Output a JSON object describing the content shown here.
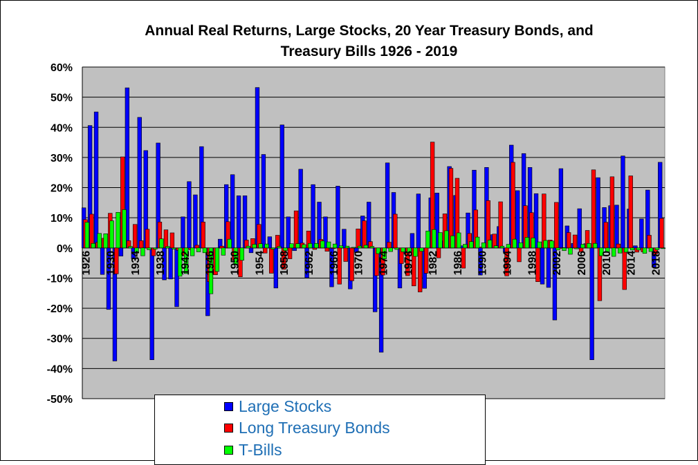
{
  "chart_data": {
    "type": "bar",
    "title": "Annual Real Returns, Large Stocks, 20 Year Treasury Bonds, and Treasury Bills 1926 - 2019",
    "title_lines": [
      "Annual Real Returns, Large Stocks, 20 Year Treasury Bonds, and",
      "Treasury Bills 1926 - 2019"
    ],
    "xlabel": "",
    "ylabel": "",
    "ylim": [
      -50,
      60
    ],
    "y_ticks": [
      "60%",
      "50%",
      "40%",
      "30%",
      "20%",
      "10%",
      "0%",
      "-10%",
      "-20%",
      "-30%",
      "-40%",
      "-50%"
    ],
    "x_tick_labels": [
      "1926",
      "1930",
      "1934",
      "1938",
      "1942",
      "1946",
      "1950",
      "1954",
      "1958",
      "1962",
      "1966",
      "1970",
      "1974",
      "1978",
      "1982",
      "1986",
      "1990",
      "1994",
      "1998",
      "2002",
      "2006",
      "2010",
      "2014",
      "2018"
    ],
    "grid": true,
    "plot_background": "#c0c0c0",
    "legend_position": "bottom",
    "years": [
      1926,
      1927,
      1928,
      1929,
      1930,
      1931,
      1932,
      1933,
      1934,
      1935,
      1936,
      1937,
      1938,
      1939,
      1940,
      1941,
      1942,
      1943,
      1944,
      1945,
      1946,
      1947,
      1948,
      1949,
      1950,
      1951,
      1952,
      1953,
      1954,
      1955,
      1956,
      1957,
      1958,
      1959,
      1960,
      1961,
      1962,
      1963,
      1964,
      1965,
      1966,
      1967,
      1968,
      1969,
      1970,
      1971,
      1972,
      1973,
      1974,
      1975,
      1976,
      1977,
      1978,
      1979,
      1980,
      1981,
      1982,
      1983,
      1984,
      1985,
      1986,
      1987,
      1988,
      1989,
      1990,
      1991,
      1992,
      1993,
      1994,
      1995,
      1996,
      1997,
      1998,
      1999,
      2000,
      2001,
      2002,
      2003,
      2004,
      2005,
      2006,
      2007,
      2008,
      2009,
      2010,
      2011,
      2012,
      2013,
      2014,
      2015,
      2016,
      2017,
      2018,
      2019
    ],
    "series": [
      {
        "name": "Large Stocks",
        "color": "#0000ff",
        "values": [
          13.3,
          40.6,
          45.1,
          -8.8,
          -20.4,
          -37.5,
          -2.7,
          53.1,
          -3.6,
          43.3,
          32.3,
          -37.1,
          34.8,
          -10.6,
          -10.3,
          -19.5,
          10.3,
          22.0,
          17.6,
          33.6,
          -22.5,
          -3.8,
          2.9,
          21.0,
          24.3,
          17.3,
          17.3,
          -1.6,
          53.2,
          31.0,
          3.7,
          -13.3,
          40.8,
          10.3,
          -0.9,
          26.1,
          -9.9,
          21.0,
          15.2,
          10.3,
          -12.9,
          20.5,
          6.2,
          -13.6,
          -1.5,
          10.6,
          15.2,
          -21.2,
          -34.6,
          28.2,
          18.4,
          -13.3,
          -2.0,
          4.8,
          17.9,
          -13.4,
          16.6,
          18.2,
          2.3,
          27.0,
          17.4,
          0.7,
          11.6,
          25.8,
          -9.0,
          26.7,
          4.4,
          7.1,
          -1.4,
          34.1,
          19.0,
          31.3,
          26.7,
          18.0,
          -12.0,
          -13.1,
          -23.9,
          26.3,
          7.3,
          1.5,
          13.0,
          1.4,
          -37.1,
          23.3,
          13.4,
          14.0,
          14.2,
          30.5,
          12.9,
          0.7,
          9.6,
          19.2,
          -6.4,
          28.4
        ]
      },
      {
        "name": "Long Treasury Bonds",
        "color": "#ff0000",
        "values": [
          9.4,
          11.2,
          1.9,
          3.2,
          11.5,
          -8.6,
          30.2,
          2.4,
          7.8,
          2.4,
          6.2,
          -2.6,
          8.6,
          6.0,
          5.0,
          -0.8,
          -2.6,
          -0.6,
          0.9,
          8.6,
          -11.2,
          -8.9,
          0.6,
          8.7,
          -4.1,
          -9.6,
          2.6,
          3.1,
          7.8,
          -1.7,
          -8.4,
          4.2,
          -7.1,
          -3.6,
          12.3,
          1.6,
          5.6,
          -0.5,
          2.8,
          -1.1,
          0.0,
          -12.0,
          -4.5,
          -10.9,
          6.3,
          9.0,
          2.1,
          -9.2,
          -9.0,
          1.9,
          11.2,
          -5.2,
          -9.2,
          -12.6,
          -14.6,
          -8.4,
          35.1,
          -3.3,
          11.3,
          26.4,
          23.1,
          -6.7,
          4.8,
          12.6,
          0.3,
          15.7,
          4.6,
          15.3,
          -9.3,
          28.4,
          -4.6,
          14.0,
          11.7,
          -11.2,
          17.9,
          2.6,
          15.1,
          0.1,
          5.1,
          4.3,
          -1.3,
          5.8,
          25.9,
          -17.5,
          8.5,
          23.6,
          1.3,
          -13.8,
          23.9,
          -1.4,
          -1.3,
          4.2,
          -2.1,
          9.8
        ]
      },
      {
        "name": "T-Bills",
        "color": "#00ff00",
        "values": [
          8.5,
          1.5,
          4.8,
          4.7,
          9.0,
          11.8,
          12.7,
          0.5,
          -1.6,
          -2.6,
          -0.6,
          -0.4,
          3.0,
          0.5,
          -0.4,
          -9.4,
          -8.5,
          -2.6,
          -1.3,
          -1.6,
          -15.2,
          -7.8,
          -2.4,
          2.9,
          -5.6,
          -4.1,
          0.6,
          1.2,
          1.4,
          1.3,
          -0.4,
          0.5,
          -0.9,
          1.4,
          1.4,
          1.1,
          1.5,
          1.5,
          2.3,
          2.0,
          1.3,
          0.7,
          0.6,
          0.2,
          0.6,
          0.9,
          0.5,
          -1.9,
          -3.6,
          -1.2,
          -0.5,
          -1.3,
          -1.6,
          -2.8,
          -1.1,
          5.6,
          6.1,
          5.1,
          5.7,
          4.0,
          5.0,
          1.2,
          2.1,
          3.6,
          1.7,
          2.6,
          0.7,
          0.6,
          1.2,
          2.9,
          1.7,
          3.5,
          3.3,
          2.0,
          2.5,
          2.3,
          -0.7,
          -0.9,
          -2.1,
          -0.3,
          1.2,
          1.5,
          1.5,
          -2.6,
          -1.4,
          -2.8,
          -1.7,
          -1.4,
          -0.7,
          -0.7,
          -1.8,
          -1.2,
          -0.6,
          -0.2
        ]
      }
    ]
  }
}
